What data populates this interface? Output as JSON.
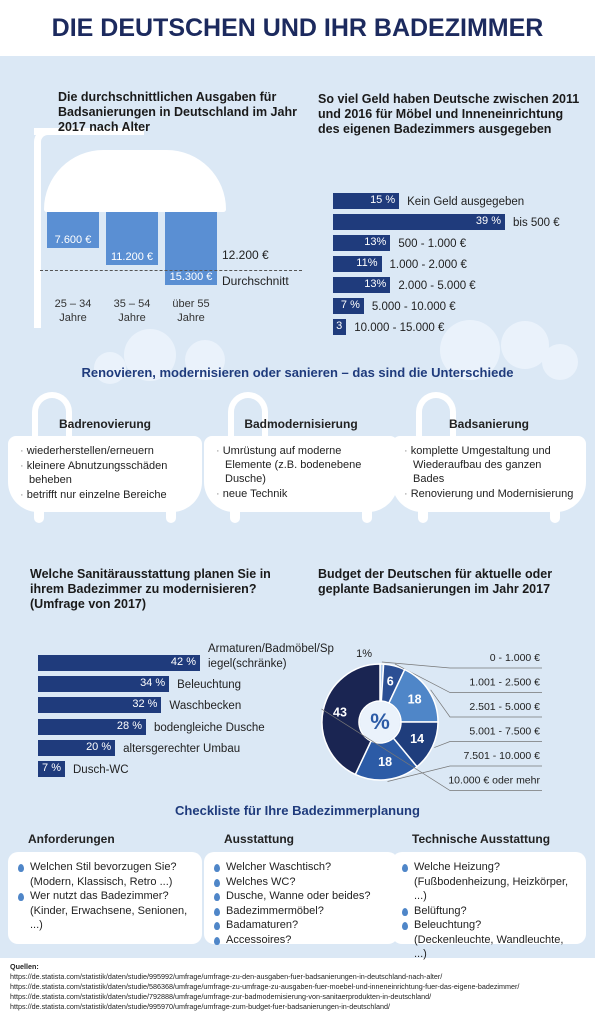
{
  "title": "DIE DEUTSCHEN UND IHR BADEZIMMER",
  "chart_data": [
    {
      "type": "column",
      "title": "Die durchschnittlichen Ausgaben für Badsanierungen in Deutschland im Jahr 2017 nach Alter",
      "categories": [
        "25 – 34 Jahre",
        "35 – 54 Jahre",
        "über 55 Jahre"
      ],
      "values": [
        7600,
        11200,
        15300
      ],
      "value_labels": [
        "7.600 €",
        "11.200 €",
        "15.300 €"
      ],
      "color": "#5a8fd3",
      "average": 12200,
      "average_label": "12.200 €",
      "average_name": "Durchschnitt"
    },
    {
      "type": "bar",
      "title": "So viel Geld haben Deutsche zwischen 2011 und 2016 für Möbel und Inneneinrichtung des eigenen Badezimmers ausgegeben",
      "categories": [
        "Kein Geld ausgegeben",
        "bis 500 €",
        "500 - 1.000 €",
        "1.000 - 2.000 €",
        "2.000 - 5.000 €",
        "5.000 - 10.000 €",
        "10.000 - 15.000 €"
      ],
      "values": [
        15,
        39,
        13,
        11,
        13,
        7,
        3
      ],
      "value_labels": [
        "15 %",
        "39 %",
        "13%",
        "11%",
        "13%",
        "7 %",
        "3"
      ],
      "color": "#1f3b7c"
    },
    {
      "type": "bar",
      "title": "Welche Sanitärausstattung planen Sie in ihrem Badezimmer zu modernisieren? (Umfrage von 2017)",
      "categories": [
        "Armaturen/Badmöbel/Spiegel(schränke)",
        "Beleuchtung",
        "Waschbecken",
        "bodengleiche Dusche",
        "altersgerechter Umbau",
        "Dusch-WC"
      ],
      "values": [
        42,
        34,
        32,
        28,
        20,
        7
      ],
      "value_labels": [
        "42 %",
        "34 %",
        "32 %",
        "28 %",
        "20 %",
        "7 %"
      ],
      "color": "#1f3b7c"
    },
    {
      "type": "donut",
      "title": "Budget der Deutschen für aktuelle oder geplante Badsanierungen im Jahr 2017",
      "categories": [
        "0 - 1.000 €",
        "1.001 - 2.500 €",
        "2.501 - 5.000 €",
        "5.001 - 7.500 €",
        "7.501 - 10.000 €",
        "10.000 € oder mehr"
      ],
      "values": [
        1,
        6,
        18,
        14,
        18,
        43
      ],
      "value_labels": [
        "1%",
        "6",
        "18",
        "14",
        "18",
        "43"
      ],
      "colors": [
        "#a9c6ea",
        "#2b4f94",
        "#4f86c8",
        "#1f3d7c",
        "#2c5ba6",
        "#1a2552"
      ],
      "center_label": "%"
    }
  ],
  "differences": {
    "title": "Renovieren, modernisieren oder sanieren – das sind die Unterschiede",
    "columns": [
      {
        "heading": "Badrenovierung",
        "bullets": [
          "wiederherstellen/erneuern",
          "kleinere Abnutzungsschäden beheben",
          "betrifft nur einzelne Bereiche"
        ]
      },
      {
        "heading": "Badmodernisierung",
        "bullets": [
          "Umrüstung auf moderne Elemente (z.B. bodenebene Dusche)",
          "neue Technik"
        ]
      },
      {
        "heading": "Badsanierung",
        "bullets": [
          "komplette Umgestaltung und Wiederaufbau des ganzen Bades",
          "Renovierung und Modernisierung"
        ]
      }
    ]
  },
  "checklist": {
    "title": "Checkliste für Ihre Badezimmerplanung",
    "columns": [
      {
        "heading": "Anforderungen",
        "items": [
          {
            "text": "Welchen Stil bevorzugen Sie?",
            "detail": "(Modern, Klassisch, Retro ...)"
          },
          {
            "text": "Wer nutzt das Badezimmer?",
            "detail": "(Kinder, Erwachsene, Senionen, ...)"
          }
        ]
      },
      {
        "heading": "Ausstattung",
        "items": [
          {
            "text": "Welcher Waschtisch?"
          },
          {
            "text": "Welches WC?"
          },
          {
            "text": "Dusche, Wanne oder beides?"
          },
          {
            "text": "Badezimmermöbel?"
          },
          {
            "text": "Badamaturen?"
          },
          {
            "text": "Accessoires?"
          }
        ]
      },
      {
        "heading": "Technische Ausstattung",
        "items": [
          {
            "text": "Welche Heizung?",
            "detail": "(Fußbodenheizung, Heizkörper, ...)"
          },
          {
            "text": "Belüftung?"
          },
          {
            "text": "Beleuchtung?",
            "detail": "(Deckenleuchte, Wandleuchte, ...)"
          }
        ]
      }
    ]
  },
  "sources": {
    "label": "Quellen:",
    "urls": [
      "https://de.statista.com/statistik/daten/studie/995992/umfrage/umfrage-zu-den-ausgaben-fuer-badsanierungen-in-deutschland-nach-alter/",
      "https://de.statista.com/statistik/daten/studie/586368/umfrage/umfrage-zu-umfrage-zu-ausgaben-fuer-moebel-und-inneneinrichtung-fuer-das-eigene-badezimmer/",
      "https://de.statista.com/statistik/daten/studie/792888/umfrage/umfrage-zur-badmodernisierung-von-sanitaerprodukten-in-deutschland/",
      "https://de.statista.com/statistik/daten/studie/995970/umfrage/umfrage-zum-budget-fuer-badsanierungen-in-deutschland/"
    ]
  }
}
